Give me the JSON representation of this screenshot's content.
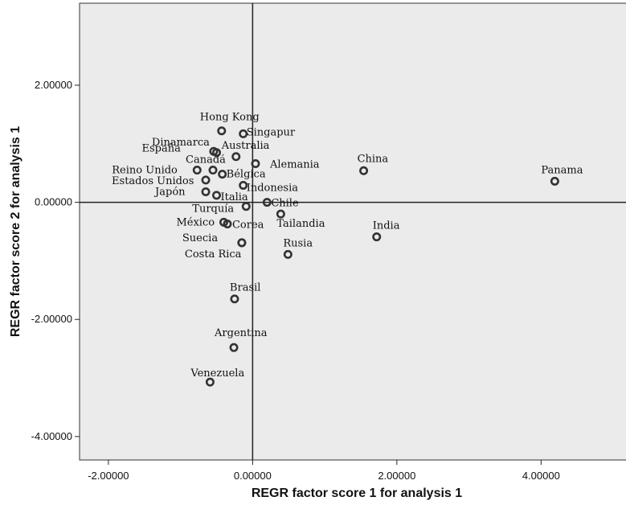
{
  "chart_data": {
    "type": "scatter",
    "xlabel": "REGR factor score   1 for analysis 1",
    "ylabel": "REGR factor score   2 for analysis 1",
    "xlim": [
      -2.4,
      5.2
    ],
    "ylim": [
      -4.4,
      3.4
    ],
    "x_ticks": [
      -2,
      0,
      2,
      4
    ],
    "y_ticks": [
      -4,
      -2,
      0,
      2
    ],
    "x_tick_labels": [
      "-2.00000",
      "0.00000",
      "2.00000",
      "4.00000"
    ],
    "y_tick_labels": [
      "-4.00000",
      "-2.00000",
      "0.00000",
      "2.00000"
    ],
    "reference_lines": {
      "x": 0,
      "y": 0
    },
    "grid": false,
    "points": [
      {
        "label": "Hong Kong",
        "x": -0.43,
        "y": 1.22
      },
      {
        "label": "Singapur",
        "x": -0.13,
        "y": 1.17
      },
      {
        "label": "Dinamarca",
        "x": -0.54,
        "y": 0.87
      },
      {
        "label": "Australia",
        "x": -0.23,
        "y": 0.78
      },
      {
        "label": "España",
        "x": -0.5,
        "y": 0.85
      },
      {
        "label": "Canadá",
        "x": -0.55,
        "y": 0.55
      },
      {
        "label": "Alemania",
        "x": 0.04,
        "y": 0.66
      },
      {
        "label": "China",
        "x": 1.54,
        "y": 0.54
      },
      {
        "label": "Panama",
        "x": 4.19,
        "y": 0.36
      },
      {
        "label": "Reino Unido",
        "x": -0.77,
        "y": 0.55
      },
      {
        "label": "Bélgica",
        "x": -0.42,
        "y": 0.48
      },
      {
        "label": "Estados Unidos",
        "x": -0.65,
        "y": 0.38
      },
      {
        "label": "Indonesia",
        "x": -0.13,
        "y": 0.29
      },
      {
        "label": "Japón",
        "x": -0.65,
        "y": 0.18
      },
      {
        "label": "Italia",
        "x": -0.5,
        "y": 0.12
      },
      {
        "label": "Chile",
        "x": 0.2,
        "y": 0.0
      },
      {
        "label": "Turquía",
        "x": -0.09,
        "y": -0.07
      },
      {
        "label": "Tailandia",
        "x": 0.39,
        "y": -0.2
      },
      {
        "label": "India",
        "x": 1.72,
        "y": -0.59
      },
      {
        "label": "México",
        "x": -0.4,
        "y": -0.34
      },
      {
        "label": "Corea",
        "x": -0.35,
        "y": -0.37
      },
      {
        "label": "Suecia",
        "x": -0.15,
        "y": -0.69
      },
      {
        "label": "Rusia",
        "x": 0.49,
        "y": -0.89
      },
      {
        "label": "Costa Rica",
        "x": -0.15,
        "y": -0.69
      },
      {
        "label": "Brasil",
        "x": -0.25,
        "y": -1.65
      },
      {
        "label": "Argentina",
        "x": -0.26,
        "y": -2.48
      },
      {
        "label": "Venezuela",
        "x": -0.59,
        "y": -3.07
      }
    ]
  }
}
